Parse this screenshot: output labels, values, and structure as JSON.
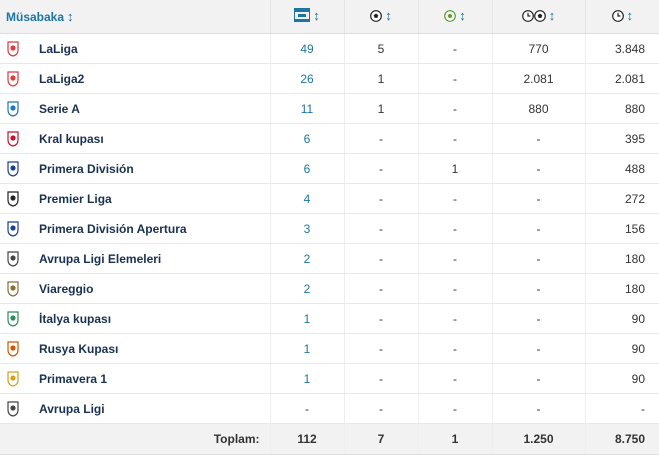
{
  "header": {
    "competition": "Müsabaka",
    "sort_icon": "↕",
    "columns": [
      {
        "icon": "lineup-icon"
      },
      {
        "icon": "ball-icon"
      },
      {
        "icon": "assist-ball-icon"
      },
      {
        "icon": "clock-ball-icon"
      },
      {
        "icon": "clock-icon"
      }
    ]
  },
  "rows": [
    {
      "name": "LaLiga",
      "logo": "laliga-logo",
      "logo_color": "#e03a3e",
      "apps": "49",
      "goals": "5",
      "assists": "-",
      "mpg": "770",
      "minutes": "3.848"
    },
    {
      "name": "LaLiga2",
      "logo": "laliga2-logo",
      "logo_color": "#e03a3e",
      "apps": "26",
      "goals": "1",
      "assists": "-",
      "mpg": "2.081",
      "minutes": "2.081"
    },
    {
      "name": "Serie A",
      "logo": "serie-a-logo",
      "logo_color": "#1e73be",
      "apps": "11",
      "goals": "1",
      "assists": "-",
      "mpg": "880",
      "minutes": "880"
    },
    {
      "name": "Kral kupası",
      "logo": "copa-del-rey-logo",
      "logo_color": "#c8102e",
      "apps": "6",
      "goals": "-",
      "assists": "-",
      "mpg": "-",
      "minutes": "395"
    },
    {
      "name": "Primera División",
      "logo": "primera-division-logo",
      "logo_color": "#1c3f95",
      "apps": "6",
      "goals": "-",
      "assists": "1",
      "mpg": "-",
      "minutes": "488"
    },
    {
      "name": "Premier Liga",
      "logo": "premier-liga-logo",
      "logo_color": "#222222",
      "apps": "4",
      "goals": "-",
      "assists": "-",
      "mpg": "-",
      "minutes": "272"
    },
    {
      "name": "Primera División Apertura",
      "logo": "apertura-logo",
      "logo_color": "#1c3f95",
      "apps": "3",
      "goals": "-",
      "assists": "-",
      "mpg": "-",
      "minutes": "156"
    },
    {
      "name": "Avrupa Ligi Elemeleri",
      "logo": "europa-qualifying-logo",
      "logo_color": "#444444",
      "apps": "2",
      "goals": "-",
      "assists": "-",
      "mpg": "-",
      "minutes": "180"
    },
    {
      "name": "Viareggio",
      "logo": "viareggio-logo",
      "logo_color": "#8a6d3b",
      "apps": "2",
      "goals": "-",
      "assists": "-",
      "mpg": "-",
      "minutes": "180"
    },
    {
      "name": "İtalya kupası",
      "logo": "coppa-italia-logo",
      "logo_color": "#2e8b57",
      "apps": "1",
      "goals": "-",
      "assists": "-",
      "mpg": "-",
      "minutes": "90"
    },
    {
      "name": "Rusya Kupası",
      "logo": "russian-cup-logo",
      "logo_color": "#d35400",
      "apps": "1",
      "goals": "-",
      "assists": "-",
      "mpg": "-",
      "minutes": "90"
    },
    {
      "name": "Primavera 1",
      "logo": "primavera-logo",
      "logo_color": "#d4a017",
      "apps": "1",
      "goals": "-",
      "assists": "-",
      "mpg": "-",
      "minutes": "90"
    },
    {
      "name": "Avrupa Ligi",
      "logo": "europa-league-logo",
      "logo_color": "#444444",
      "apps": "-",
      "goals": "-",
      "assists": "-",
      "mpg": "-",
      "minutes": "-"
    }
  ],
  "total": {
    "label": "Toplam:",
    "apps": "112",
    "goals": "7",
    "assists": "1",
    "mpg": "1.250",
    "minutes": "8.750"
  },
  "colors": {
    "accent": "#1d75a3",
    "header_bg": "#f2f2f2",
    "name_color": "#1a3151"
  }
}
